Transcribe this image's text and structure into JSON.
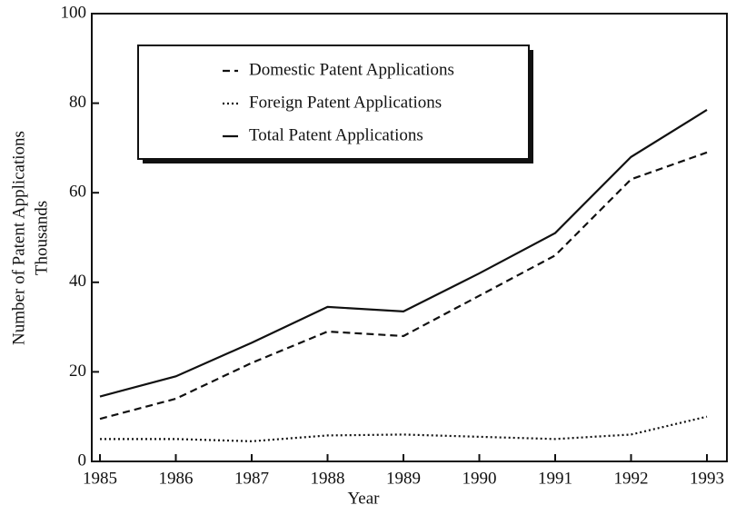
{
  "chart_data": {
    "type": "line",
    "xlabel": "Year",
    "ylabel": [
      "Number of Patent Applications",
      "Thousands"
    ],
    "categories": [
      "1985",
      "1986",
      "1987",
      "1988",
      "1989",
      "1990",
      "1991",
      "1992",
      "1993"
    ],
    "series": [
      {
        "name": "Domestic Patent Applications",
        "color": "#111111",
        "style": "dashed",
        "values": [
          9.5,
          14,
          22,
          29,
          28,
          37,
          46,
          63,
          69
        ]
      },
      {
        "name": "Foreign Patent Applications",
        "color": "#111111",
        "style": "dotted",
        "values": [
          5,
          5,
          4.5,
          5.8,
          6,
          5.5,
          5,
          6,
          10
        ]
      },
      {
        "name": "Total Patent Applications",
        "color": "#111111",
        "style": "solid",
        "values": [
          14.5,
          19,
          26.5,
          34.5,
          33.5,
          42,
          51,
          68,
          78.5
        ]
      }
    ],
    "ylim": [
      0,
      100
    ],
    "yticks": [
      0,
      20,
      40,
      60,
      80,
      100
    ],
    "legend": "upper left"
  }
}
